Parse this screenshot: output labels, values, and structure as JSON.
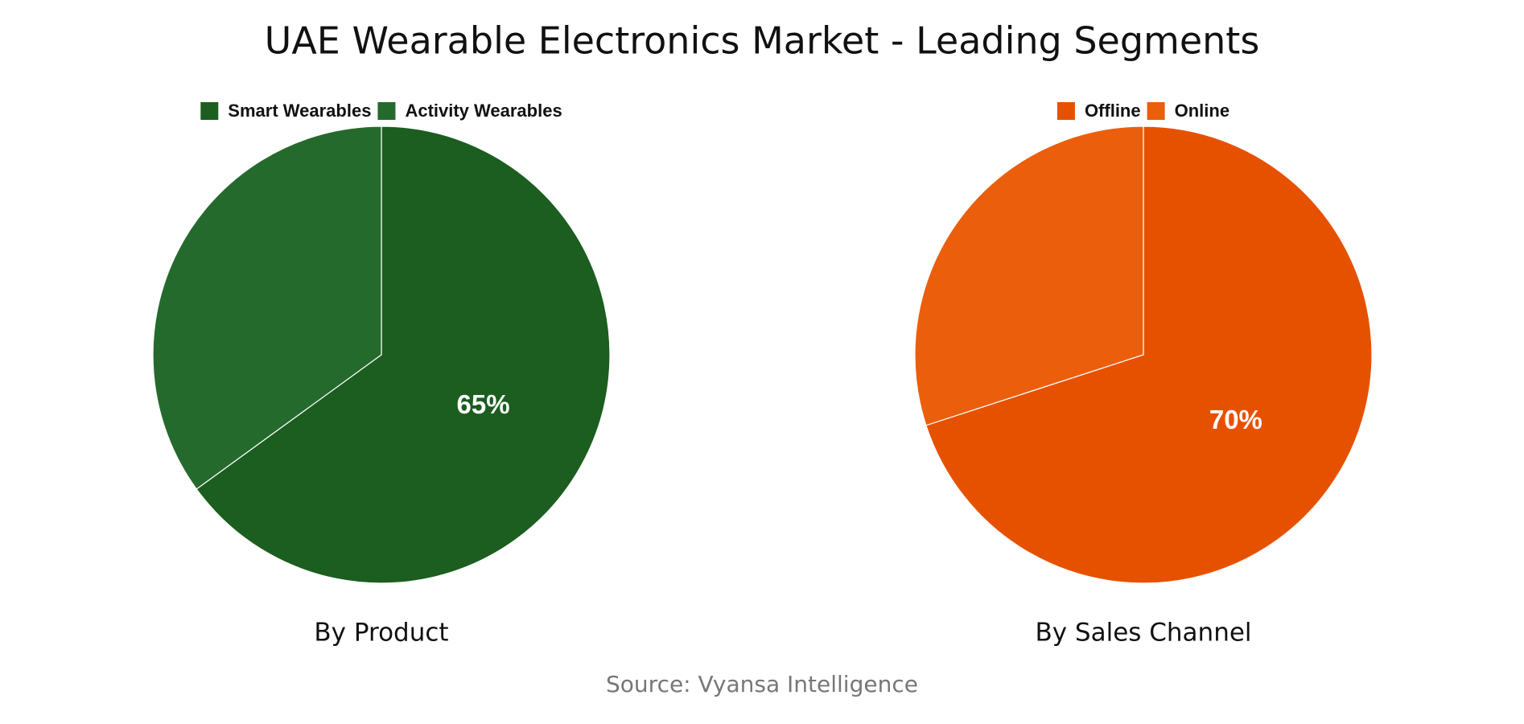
{
  "title": "UAE Wearable Electronics Market - Leading Segments",
  "source": "Source: Vyansa Intelligence",
  "chart_data": [
    {
      "type": "pie",
      "title": "By Product",
      "categories": [
        "Smart Wearables",
        "Activity Wearables"
      ],
      "values": [
        65,
        35
      ],
      "value_labels": [
        "65%",
        null
      ],
      "colors": [
        "#1b5e20",
        "#256a2d"
      ],
      "legend": "top"
    },
    {
      "type": "pie",
      "title": "By Sales Channel",
      "categories": [
        "Offline",
        "Online"
      ],
      "values": [
        70,
        30
      ],
      "value_labels": [
        "70%",
        null
      ],
      "colors": [
        "#e65100",
        "#eb5e0c"
      ],
      "legend": "top"
    }
  ]
}
